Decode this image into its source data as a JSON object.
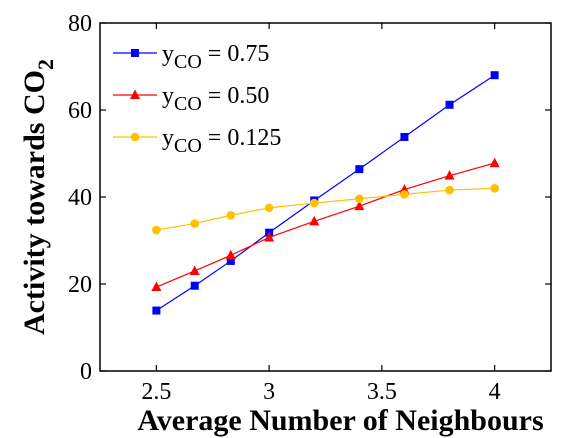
{
  "chart_data": {
    "type": "line",
    "title": "",
    "xlabel": "Average Number of Neighbours",
    "ylabel_main": "Activity towards CO",
    "ylabel_sub": "2",
    "xlim": [
      2.25,
      4.25
    ],
    "ylim": [
      0,
      80
    ],
    "xticks": [
      2.5,
      3,
      3.5,
      4
    ],
    "xtick_labels": [
      "2.5",
      "3",
      "3.5",
      "4"
    ],
    "yticks": [
      0,
      20,
      40,
      60,
      80
    ],
    "ytick_labels": [
      "0",
      "20",
      "40",
      "60",
      "80"
    ],
    "grid": false,
    "legend_position": "top-left",
    "x": [
      2.5,
      2.67,
      2.83,
      3.0,
      3.2,
      3.4,
      3.6,
      3.8,
      4.0
    ],
    "series": [
      {
        "name_base": "y",
        "name_sub": "CO",
        "name_value": " = 0.75",
        "color": "#0000ff",
        "marker": "square",
        "values": [
          13.9,
          19.6,
          25.3,
          31.8,
          39.2,
          46.4,
          53.8,
          61.2,
          68.0
        ]
      },
      {
        "name_base": "y",
        "name_sub": "CO",
        "name_value": " = 0.50",
        "color": "#ff0000",
        "marker": "triangle",
        "values": [
          19.3,
          23.0,
          26.6,
          30.7,
          34.4,
          37.9,
          41.7,
          44.9,
          47.8
        ]
      },
      {
        "name_base": "y",
        "name_sub": "CO",
        "name_value": " = 0.125",
        "color": "#ffc000",
        "marker": "circle",
        "values": [
          32.4,
          33.9,
          35.8,
          37.5,
          38.6,
          39.6,
          40.6,
          41.6,
          42.0
        ]
      }
    ]
  }
}
